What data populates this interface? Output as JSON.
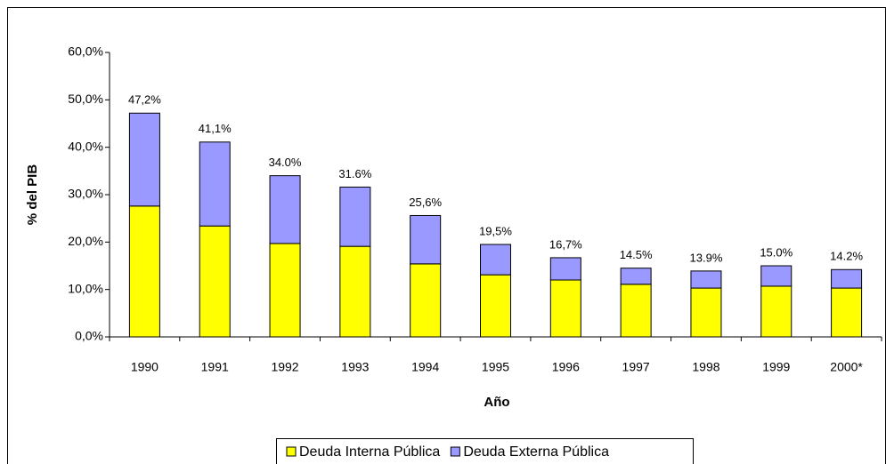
{
  "chart_data": {
    "type": "stacked_bar",
    "y_label": "% del PIB",
    "x_label": "Año",
    "categories": [
      "1990",
      "1991",
      "1992",
      "1993",
      "1994",
      "1995",
      "1996",
      "1997",
      "1998",
      "1999",
      "2000*"
    ],
    "series": [
      {
        "name": "Deuda Interna Pública",
        "color": "#ffff00",
        "values": [
          27.6,
          23.4,
          19.7,
          19.1,
          15.4,
          13.1,
          12.0,
          11.1,
          10.3,
          10.7,
          10.3
        ]
      },
      {
        "name": "Deuda Externa Pública",
        "color": "#9999ff",
        "values": [
          19.6,
          17.7,
          14.3,
          12.5,
          10.2,
          6.4,
          4.7,
          3.4,
          3.6,
          4.3,
          3.9
        ]
      }
    ],
    "total_labels": [
      "47,2%",
      "41,1%",
      "34.0%",
      "31.6%",
      "25,6%",
      "19,5%",
      "16,7%",
      "14.5%",
      "13.9%",
      "15.0%",
      "14.2%"
    ],
    "ylim": [
      0,
      60
    ],
    "yticks": [
      {
        "value": 0,
        "label": "0,0%"
      },
      {
        "value": 10,
        "label": "10,0%"
      },
      {
        "value": 20,
        "label": "20,0%"
      },
      {
        "value": 30,
        "label": "30,0%"
      },
      {
        "value": 40,
        "label": "40,0%"
      },
      {
        "value": 50,
        "label": "50,0%"
      },
      {
        "value": 60,
        "label": "60,0%"
      }
    ],
    "legend": "bottom"
  }
}
